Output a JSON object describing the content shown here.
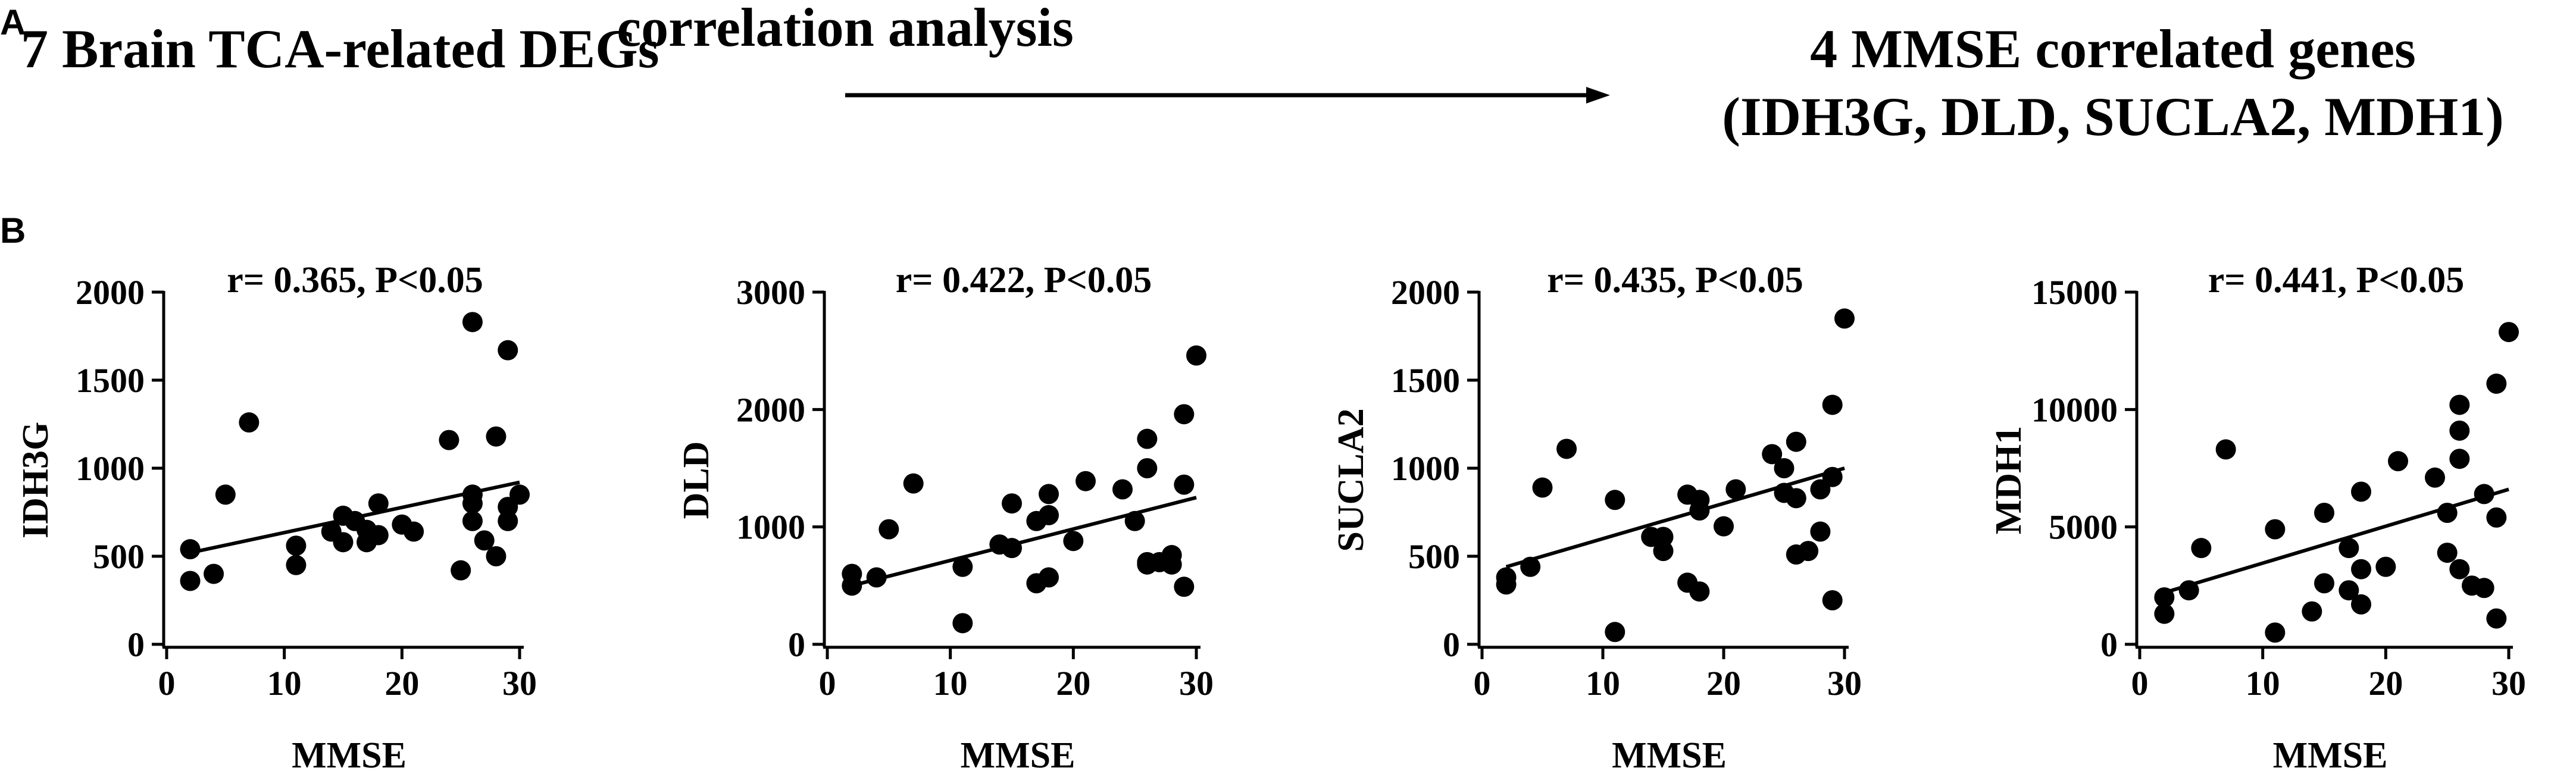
{
  "panel_a": {
    "letter": "A",
    "left_text": "7 Brain TCA-related DEGs",
    "arrow_label": "correlation analysis",
    "right_line1": "4 MMSE correlated genes",
    "right_line2": "(IDH3G, DLD, SUCLA2, MDH1)"
  },
  "panel_b": {
    "letter": "B"
  },
  "chart_data": [
    {
      "type": "scatter",
      "title": "r= 0.365, P<0.05",
      "xlabel": "MMSE",
      "ylabel": "IDH3G",
      "xlim": [
        0,
        30
      ],
      "ylim": [
        0,
        2000
      ],
      "xticks": [
        0,
        10,
        20,
        30
      ],
      "yticks": [
        0,
        500,
        1000,
        1500,
        2000
      ],
      "points": [
        [
          2,
          360
        ],
        [
          2,
          540
        ],
        [
          4,
          400
        ],
        [
          5,
          850
        ],
        [
          7,
          1260
        ],
        [
          11,
          450
        ],
        [
          11,
          560
        ],
        [
          14,
          640
        ],
        [
          15,
          730
        ],
        [
          15,
          580
        ],
        [
          16,
          700
        ],
        [
          17,
          580
        ],
        [
          17,
          650
        ],
        [
          18,
          620
        ],
        [
          18,
          800
        ],
        [
          20,
          680
        ],
        [
          21,
          640
        ],
        [
          24,
          1160
        ],
        [
          25,
          420
        ],
        [
          26,
          1830
        ],
        [
          26,
          850
        ],
        [
          26,
          700
        ],
        [
          26,
          800
        ],
        [
          27,
          590
        ],
        [
          28,
          1180
        ],
        [
          28,
          500
        ],
        [
          29,
          1670
        ],
        [
          29,
          700
        ],
        [
          29,
          780
        ],
        [
          30,
          850
        ]
      ],
      "fit": [
        [
          2,
          520
        ],
        [
          30,
          920
        ]
      ]
    },
    {
      "type": "scatter",
      "title": "r= 0.422, P<0.05",
      "xlabel": "MMSE",
      "ylabel": "DLD",
      "xlim": [
        0,
        30
      ],
      "ylim": [
        0,
        3000
      ],
      "xticks": [
        0,
        10,
        20,
        30
      ],
      "yticks": [
        0,
        1000,
        2000,
        3000
      ],
      "points": [
        [
          2,
          500
        ],
        [
          2,
          600
        ],
        [
          4,
          570
        ],
        [
          5,
          980
        ],
        [
          7,
          1370
        ],
        [
          11,
          180
        ],
        [
          11,
          660
        ],
        [
          14,
          850
        ],
        [
          15,
          1200
        ],
        [
          15,
          820
        ],
        [
          17,
          520
        ],
        [
          17,
          1050
        ],
        [
          18,
          570
        ],
        [
          18,
          1280
        ],
        [
          18,
          1100
        ],
        [
          20,
          880
        ],
        [
          21,
          1390
        ],
        [
          24,
          1320
        ],
        [
          25,
          1050
        ],
        [
          26,
          1750
        ],
        [
          26,
          700
        ],
        [
          26,
          680
        ],
        [
          26,
          1500
        ],
        [
          27,
          700
        ],
        [
          28,
          760
        ],
        [
          28,
          680
        ],
        [
          29,
          1960
        ],
        [
          29,
          1360
        ],
        [
          29,
          490
        ],
        [
          30,
          2460
        ]
      ],
      "fit": [
        [
          2,
          500
        ],
        [
          30,
          1250
        ]
      ]
    },
    {
      "type": "scatter",
      "title": "r= 0.435, P<0.05",
      "xlabel": "MMSE",
      "ylabel": "SUCLA2",
      "xlim": [
        0,
        30
      ],
      "ylim": [
        0,
        2000
      ],
      "xticks": [
        0,
        10,
        20,
        30
      ],
      "yticks": [
        0,
        500,
        1000,
        1500,
        2000
      ],
      "points": [
        [
          2,
          340
        ],
        [
          2,
          380
        ],
        [
          4,
          440
        ],
        [
          5,
          890
        ],
        [
          7,
          1110
        ],
        [
          11,
          70
        ],
        [
          11,
          820
        ],
        [
          14,
          610
        ],
        [
          15,
          530
        ],
        [
          15,
          610
        ],
        [
          17,
          350
        ],
        [
          17,
          850
        ],
        [
          18,
          760
        ],
        [
          18,
          820
        ],
        [
          18,
          300
        ],
        [
          20,
          670
        ],
        [
          21,
          880
        ],
        [
          24,
          1080
        ],
        [
          25,
          1000
        ],
        [
          25,
          860
        ],
        [
          26,
          1150
        ],
        [
          26,
          510
        ],
        [
          26,
          830
        ],
        [
          27,
          530
        ],
        [
          28,
          880
        ],
        [
          28,
          640
        ],
        [
          29,
          1360
        ],
        [
          29,
          250
        ],
        [
          29,
          950
        ],
        [
          30,
          1850
        ]
      ],
      "fit": [
        [
          2,
          440
        ],
        [
          30,
          1000
        ]
      ]
    },
    {
      "type": "scatter",
      "title": "r= 0.441, P<0.05",
      "xlabel": "MMSE",
      "ylabel": "MDH1",
      "xlim": [
        0,
        30
      ],
      "ylim": [
        0,
        15000
      ],
      "xticks": [
        0,
        10,
        20,
        30
      ],
      "yticks": [
        0,
        5000,
        10000,
        15000
      ],
      "points": [
        [
          2,
          1300
        ],
        [
          2,
          2000
        ],
        [
          4,
          2300
        ],
        [
          5,
          4100
        ],
        [
          7,
          8300
        ],
        [
          11,
          500
        ],
        [
          11,
          4900
        ],
        [
          14,
          1400
        ],
        [
          15,
          5600
        ],
        [
          15,
          2600
        ],
        [
          17,
          2300
        ],
        [
          17,
          4100
        ],
        [
          18,
          1700
        ],
        [
          18,
          3200
        ],
        [
          18,
          6500
        ],
        [
          20,
          3300
        ],
        [
          21,
          7800
        ],
        [
          24,
          7100
        ],
        [
          25,
          3900
        ],
        [
          25,
          5600
        ],
        [
          26,
          10200
        ],
        [
          26,
          9100
        ],
        [
          26,
          7900
        ],
        [
          26,
          3200
        ],
        [
          27,
          2500
        ],
        [
          28,
          2400
        ],
        [
          28,
          6400
        ],
        [
          29,
          11100
        ],
        [
          29,
          1100
        ],
        [
          29,
          5400
        ],
        [
          30,
          13300
        ]
      ],
      "fit": [
        [
          2,
          2200
        ],
        [
          30,
          6600
        ]
      ]
    }
  ]
}
